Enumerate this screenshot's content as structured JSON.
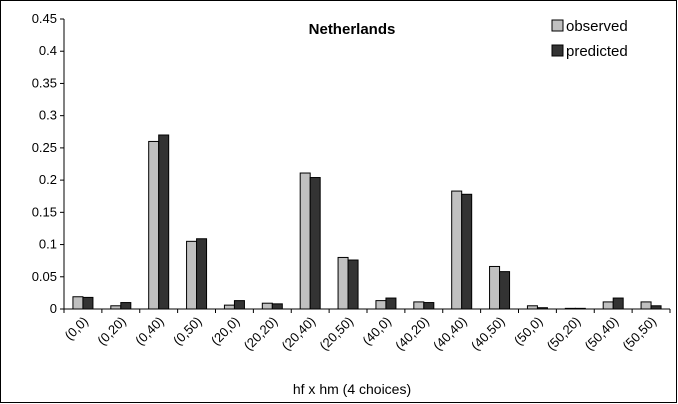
{
  "chart_data": {
    "type": "bar",
    "title": "Netherlands",
    "xlabel": "hf x hm (4 choices)",
    "ylabel": "",
    "ylim": [
      0,
      0.45
    ],
    "yticks": [
      "0",
      "0.05",
      "0.1",
      "0.15",
      "0.2",
      "0.25",
      "0.3",
      "0.35",
      "0.4",
      "0.45"
    ],
    "categories": [
      "(0,0)",
      "(0,20)",
      "(0,40)",
      "(0,50)",
      "(20,0)",
      "(20,20)",
      "(20,40)",
      "(20,50)",
      "(40,0)",
      "(40,20)",
      "(40,40)",
      "(40,50)",
      "(50,0)",
      "(50,20)",
      "(50,40)",
      "(50,50)"
    ],
    "series": [
      {
        "name": "observed",
        "color": "#c0c0c0",
        "values": [
          0.019,
          0.005,
          0.26,
          0.105,
          0.006,
          0.009,
          0.211,
          0.08,
          0.013,
          0.011,
          0.183,
          0.066,
          0.005,
          0.001,
          0.011,
          0.011
        ]
      },
      {
        "name": "predicted",
        "color": "#333333",
        "values": [
          0.018,
          0.01,
          0.27,
          0.109,
          0.013,
          0.008,
          0.204,
          0.076,
          0.017,
          0.01,
          0.178,
          0.058,
          0.002,
          0.001,
          0.017,
          0.005
        ]
      }
    ],
    "grid": false,
    "legend": "top-right"
  }
}
